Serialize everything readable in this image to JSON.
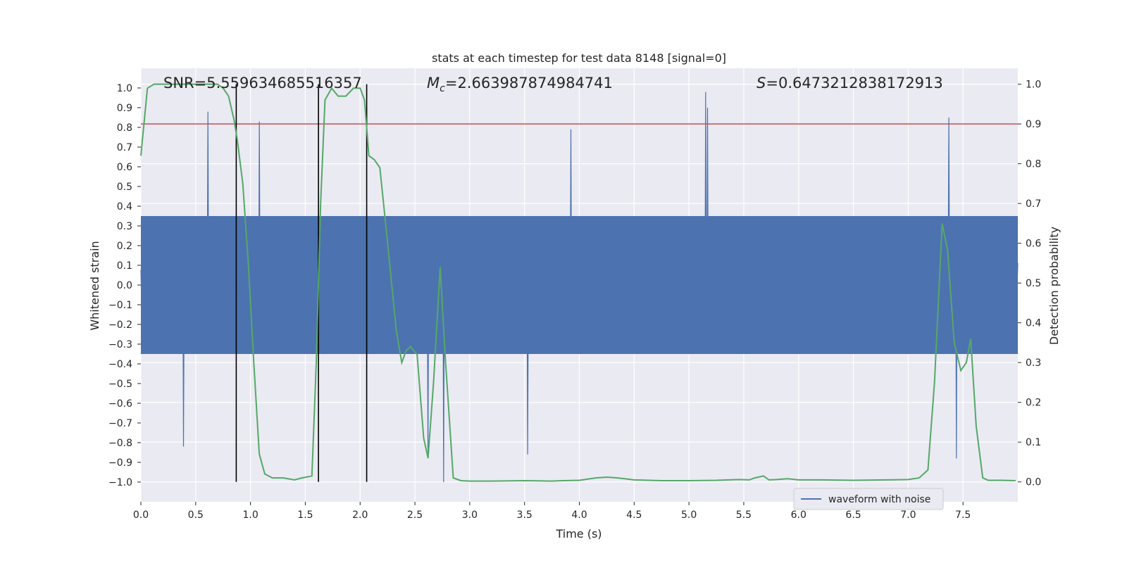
{
  "chart_data": {
    "type": "line",
    "title": "stats at each timestep for test data 8148 [signal=0]",
    "xlabel": "Time (s)",
    "ylabel_left": "Whitened strain",
    "ylabel_right": "Detection probability",
    "xlim": [
      0.0,
      8.0
    ],
    "ylim_left": [
      -1.1,
      1.1
    ],
    "ylim_right": [
      -0.05,
      1.04
    ],
    "x_ticks": [
      "0.0",
      "0.5",
      "1.0",
      "1.5",
      "2.0",
      "2.5",
      "3.0",
      "3.5",
      "4.0",
      "4.5",
      "5.0",
      "5.5",
      "6.0",
      "6.5",
      "7.0",
      "7.5"
    ],
    "y_ticks_left": [
      "1.0",
      "0.9",
      "0.8",
      "0.7",
      "0.6",
      "0.5",
      "0.4",
      "0.3",
      "0.2",
      "0.1",
      "0.0",
      "-0.1",
      "-0.2",
      "-0.3",
      "-0.4",
      "-0.5",
      "-0.6",
      "-0.7",
      "-0.8",
      "-0.9",
      "-1.0"
    ],
    "y_ticks_right": [
      "1.0",
      "0.9",
      "0.8",
      "0.7",
      "0.6",
      "0.5",
      "0.4",
      "0.3",
      "0.2",
      "0.1",
      "0.0"
    ],
    "grid": true,
    "legend": {
      "position": "bottom-right",
      "entries": [
        "waveform with noise"
      ]
    },
    "annotations": {
      "snr": {
        "label": "SNR",
        "value": "5.559634685516357"
      },
      "mc": {
        "label": "M",
        "subscript": "c",
        "value": "2.663987874984741"
      },
      "s": {
        "label": "S",
        "value": "0.6473212838172913"
      }
    },
    "threshold": {
      "value": 0.9,
      "axis": "right"
    },
    "event_markers_x": [
      0.87,
      1.62,
      2.06
    ],
    "waveform": {
      "name": "waveform with noise",
      "color": "#4c72b0",
      "peak_events": [
        {
          "x": 0.61,
          "hi": 0.88
        },
        {
          "x": 1.08,
          "hi": 0.83
        },
        {
          "x": 2.62,
          "lo": -0.88
        },
        {
          "x": 2.76,
          "lo": -1.0
        },
        {
          "x": 3.92,
          "hi": 0.79
        },
        {
          "x": 5.15,
          "hi": 0.98
        },
        {
          "x": 5.17,
          "hi": 0.9
        },
        {
          "x": 7.37,
          "hi": 0.85
        },
        {
          "x": 7.44,
          "lo": -0.88
        },
        {
          "x": 0.39,
          "lo": -0.82
        },
        {
          "x": 3.53,
          "lo": -0.86
        }
      ]
    },
    "series": [
      {
        "name": "Detection probability",
        "color": "#55a868",
        "axis": "right",
        "x": [
          0.0,
          0.06,
          0.12,
          0.2,
          0.3,
          0.4,
          0.5,
          0.6,
          0.7,
          0.75,
          0.8,
          0.85,
          0.88,
          0.93,
          0.98,
          1.03,
          1.08,
          1.13,
          1.2,
          1.3,
          1.4,
          1.47,
          1.56,
          1.6,
          1.64,
          1.68,
          1.74,
          1.8,
          1.87,
          1.94,
          2.0,
          2.04,
          2.08,
          2.13,
          2.18,
          2.24,
          2.28,
          2.33,
          2.38,
          2.42,
          2.46,
          2.52,
          2.58,
          2.62,
          2.67,
          2.73,
          2.78,
          2.85,
          2.92,
          3.0,
          3.2,
          3.5,
          3.75,
          3.85,
          4.0,
          4.15,
          4.25,
          4.35,
          4.5,
          4.75,
          5.0,
          5.25,
          5.45,
          5.55,
          5.6,
          5.68,
          5.73,
          5.8,
          5.9,
          6.0,
          6.2,
          6.5,
          6.8,
          7.0,
          7.1,
          7.18,
          7.24,
          7.31,
          7.36,
          7.42,
          7.48,
          7.53,
          7.57,
          7.62,
          7.68,
          7.73,
          7.85,
          7.98
        ],
        "values": [
          0.82,
          0.99,
          1.0,
          1.0,
          1.0,
          1.0,
          1.0,
          1.0,
          1.0,
          0.99,
          0.97,
          0.91,
          0.86,
          0.75,
          0.55,
          0.3,
          0.07,
          0.02,
          0.01,
          0.01,
          0.005,
          0.01,
          0.015,
          0.3,
          0.7,
          0.96,
          0.99,
          0.97,
          0.97,
          0.99,
          0.99,
          0.96,
          0.82,
          0.81,
          0.79,
          0.63,
          0.52,
          0.38,
          0.3,
          0.33,
          0.34,
          0.32,
          0.11,
          0.06,
          0.25,
          0.54,
          0.3,
          0.01,
          0.003,
          0.002,
          0.002,
          0.003,
          0.002,
          0.003,
          0.004,
          0.01,
          0.012,
          0.01,
          0.005,
          0.003,
          0.003,
          0.004,
          0.006,
          0.005,
          0.01,
          0.015,
          0.005,
          0.006,
          0.008,
          0.005,
          0.005,
          0.004,
          0.005,
          0.006,
          0.01,
          0.03,
          0.25,
          0.65,
          0.58,
          0.35,
          0.28,
          0.3,
          0.36,
          0.14,
          0.01,
          0.004,
          0.004,
          0.003
        ]
      }
    ]
  }
}
